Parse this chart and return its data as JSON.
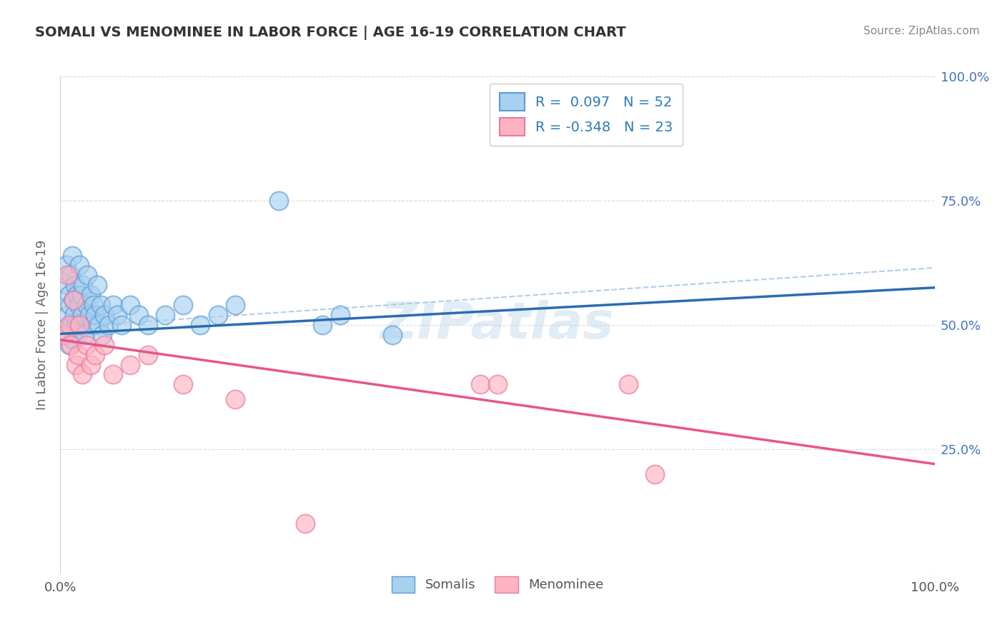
{
  "title": "SOMALI VS MENOMINEE IN LABOR FORCE | AGE 16-19 CORRELATION CHART",
  "source": "Source: ZipAtlas.com",
  "ylabel": "In Labor Force | Age 16-19",
  "xlim": [
    0.0,
    1.0
  ],
  "ylim": [
    0.0,
    1.0
  ],
  "somali_R": "0.097",
  "somali_N": "52",
  "menominee_R": "-0.348",
  "menominee_N": "23",
  "somali_color": "#a8d1f0",
  "somali_edge_color": "#5b9bd5",
  "menominee_color": "#ffb3c1",
  "menominee_edge_color": "#e879a0",
  "somali_line_color": "#2b6cb0",
  "menominee_line_color": "#e8558a",
  "dash_line_color": "#aac8e8",
  "background_color": "#ffffff",
  "grid_color": "#cccccc",
  "right_tick_color": "#4472c4",
  "somali_x": [
    0.005,
    0.007,
    0.008,
    0.009,
    0.01,
    0.01,
    0.011,
    0.012,
    0.013,
    0.014,
    0.015,
    0.015,
    0.016,
    0.017,
    0.018,
    0.019,
    0.02,
    0.021,
    0.022,
    0.023,
    0.024,
    0.025,
    0.026,
    0.028,
    0.03,
    0.031,
    0.033,
    0.035,
    0.037,
    0.038,
    0.04,
    0.042,
    0.044,
    0.046,
    0.048,
    0.05,
    0.055,
    0.06,
    0.065,
    0.07,
    0.08,
    0.09,
    0.1,
    0.12,
    0.14,
    0.16,
    0.18,
    0.2,
    0.25,
    0.3,
    0.32,
    0.38
  ],
  "somali_y": [
    0.48,
    0.62,
    0.58,
    0.52,
    0.56,
    0.46,
    0.54,
    0.6,
    0.5,
    0.64,
    0.55,
    0.47,
    0.52,
    0.58,
    0.5,
    0.56,
    0.48,
    0.54,
    0.62,
    0.5,
    0.56,
    0.52,
    0.58,
    0.48,
    0.54,
    0.6,
    0.52,
    0.56,
    0.5,
    0.54,
    0.52,
    0.58,
    0.5,
    0.54,
    0.48,
    0.52,
    0.5,
    0.54,
    0.52,
    0.5,
    0.54,
    0.52,
    0.5,
    0.52,
    0.54,
    0.5,
    0.52,
    0.54,
    0.75,
    0.5,
    0.52,
    0.48
  ],
  "menominee_x": [
    0.005,
    0.008,
    0.01,
    0.012,
    0.015,
    0.018,
    0.02,
    0.022,
    0.025,
    0.03,
    0.035,
    0.04,
    0.05,
    0.06,
    0.08,
    0.1,
    0.14,
    0.2,
    0.28,
    0.48,
    0.5,
    0.65,
    0.68
  ],
  "menominee_y": [
    0.48,
    0.6,
    0.5,
    0.46,
    0.55,
    0.42,
    0.44,
    0.5,
    0.4,
    0.46,
    0.42,
    0.44,
    0.46,
    0.4,
    0.42,
    0.44,
    0.38,
    0.35,
    0.1,
    0.38,
    0.38,
    0.38,
    0.2
  ],
  "blue_line_x0": 0.0,
  "blue_line_y0": 0.482,
  "blue_line_x1": 1.0,
  "blue_line_y1": 0.575,
  "pink_line_x0": 0.0,
  "pink_line_y0": 0.47,
  "pink_line_x1": 1.0,
  "pink_line_y1": 0.22,
  "dash_line_x0": 0.0,
  "dash_line_y0": 0.495,
  "dash_line_x1": 1.0,
  "dash_line_y1": 0.615,
  "watermark": "ZIPatlas"
}
